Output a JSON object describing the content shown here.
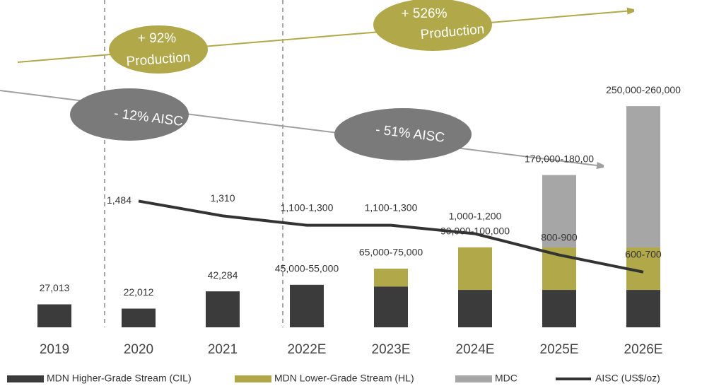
{
  "chart_data": {
    "type": "bar",
    "stacked": true,
    "categories": [
      "2019",
      "2020",
      "2021",
      "2022E",
      "2023E",
      "2024E",
      "2025E",
      "2026E"
    ],
    "total_labels": [
      "27,013",
      "22,012",
      "42,284",
      "45,000-55,000",
      "65,000-75,000",
      "90,000-100,000",
      "170,000-180,00",
      "250,000-260,000"
    ],
    "series": [
      {
        "name": "MDN Higher-Grade Stream (CIL)",
        "color": "#3b3b3b",
        "values": [
          27013,
          22012,
          42284,
          50000,
          48000,
          44000,
          44000,
          44000
        ]
      },
      {
        "name": "MDN Lower-Grade Stream (HL)",
        "color": "#b1a84a",
        "values": [
          0,
          0,
          0,
          0,
          21000,
          50000,
          50000,
          50000
        ]
      },
      {
        "name": "MDC",
        "color": "#a6a6a6",
        "values": [
          0,
          0,
          0,
          0,
          0,
          0,
          85000,
          166000
        ]
      },
      {
        "name": "AISC (US$/oz)",
        "color": "#333333",
        "type": "line",
        "axis": "y2",
        "values": [
          null,
          1484,
          1310,
          1200,
          1200,
          1100,
          850,
          650
        ],
        "value_labels": [
          null,
          "1,484",
          "1,310",
          "1,100-1,300",
          "1,100-1,300",
          "1,000-1,200",
          "800-900",
          "600-700"
        ]
      }
    ],
    "ylim": [
      0,
      300000
    ],
    "y2lim": [
      0,
      3000
    ],
    "annotations": [
      "+ 92%",
      "Production",
      "- 12% AISC",
      "+ 526%",
      "Production",
      "- 51% AISC"
    ]
  }
}
